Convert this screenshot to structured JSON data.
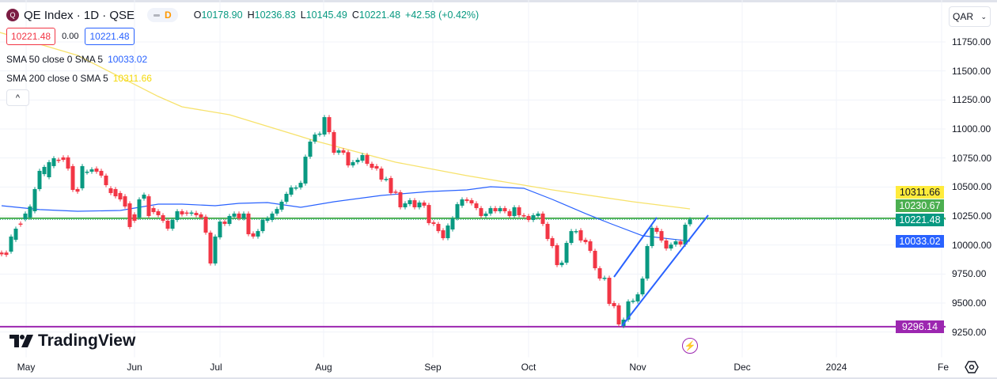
{
  "header": {
    "symbol": "QE Index · 1D · QSE",
    "logo_letter": "Q",
    "interval_badge": "D",
    "ohlc": [
      {
        "k": "O",
        "v": "10178.90"
      },
      {
        "k": "H",
        "v": "10236.83"
      },
      {
        "k": "L",
        "v": "10145.49"
      },
      {
        "k": "C",
        "v": "10221.48"
      }
    ],
    "change": "+42.58 (+0.42%)"
  },
  "quote": {
    "bid": "10221.48",
    "spread": "0.00",
    "ask": "10221.48"
  },
  "indicators": [
    {
      "label": "SMA 50 close 0 SMA 5",
      "value": "10033.02",
      "color": "#2962ff"
    },
    {
      "label": "SMA 200 close 0 SMA 5",
      "value": "10311.66",
      "color": "#f5d90a"
    }
  ],
  "collapse_label": "^",
  "currency": "QAR",
  "price_ticks": [
    "11750.00",
    "11500.00",
    "11250.00",
    "11000.00",
    "10750.00",
    "10500.00",
    "10250.00",
    "10000.00",
    "9750.00",
    "9500.00",
    "9250.00"
  ],
  "price_labels": [
    {
      "v": "10311.66",
      "bg": "#ffeb3b",
      "fg": "#131722"
    },
    {
      "v": "10230.67",
      "bg": "#4caf50",
      "fg": "#ffffff"
    },
    {
      "v": "10221.48",
      "bg": "#089981",
      "fg": "#ffffff"
    },
    {
      "v": "10033.02",
      "bg": "#2962ff",
      "fg": "#ffffff"
    },
    {
      "v": "9296.14",
      "bg": "#9c27b0",
      "fg": "#ffffff"
    }
  ],
  "time_labels": [
    "May",
    "Jun",
    "Jul",
    "Aug",
    "Sep",
    "Oct",
    "Nov",
    "Dec",
    "2024",
    "Fe"
  ],
  "brand": "TradingView",
  "colors": {
    "up": "#089981",
    "down": "#f23645",
    "sma50": "#2962ff",
    "sma200": "#f7e26b",
    "hline": "#4caf50",
    "support": "#9c27b0",
    "trend": "#2962ff"
  },
  "chart_data": {
    "type": "candlestick",
    "ylim": [
      9200,
      11900
    ],
    "hlines": {
      "resistance": 10230.67,
      "last": 10221.48,
      "support": 9296.14
    },
    "candles": [
      [
        9935,
        9920
      ],
      [
        9935,
        9915
      ],
      [
        9943,
        10073
      ],
      [
        10045,
        10141
      ],
      [
        10185,
        10175
      ],
      [
        10223,
        10271
      ],
      [
        10237,
        10332
      ],
      [
        10291,
        10482
      ],
      [
        10482,
        10639
      ],
      [
        10611,
        10673
      ],
      [
        10584,
        10714
      ],
      [
        10680,
        10748
      ],
      [
        10735,
        10725
      ],
      [
        10755,
        10734
      ],
      [
        10755,
        10659
      ],
      [
        10680,
        10475
      ],
      [
        10482,
        10460
      ],
      [
        10489,
        10680
      ],
      [
        10625,
        10632
      ],
      [
        10632,
        10652
      ],
      [
        10659,
        10632
      ],
      [
        10639,
        10598
      ],
      [
        10598,
        10516
      ],
      [
        10489,
        10448
      ],
      [
        10482,
        10420
      ],
      [
        10448,
        10393
      ],
      [
        10420,
        10332
      ],
      [
        10359,
        10155
      ],
      [
        10264,
        10209
      ],
      [
        10237,
        10393
      ],
      [
        10400,
        10434
      ],
      [
        10420,
        10250
      ],
      [
        10318,
        10284
      ],
      [
        10291,
        10257
      ],
      [
        10257,
        10209
      ],
      [
        10209,
        10141
      ],
      [
        10141,
        10216
      ],
      [
        10216,
        10291
      ],
      [
        10291,
        10264
      ],
      [
        10280,
        10270
      ],
      [
        10270,
        10280
      ],
      [
        10277,
        10257
      ],
      [
        10264,
        10237
      ],
      [
        10244,
        10107
      ],
      [
        10107,
        9841
      ],
      [
        9841,
        10073
      ],
      [
        10066,
        10202
      ],
      [
        10202,
        10182
      ],
      [
        10182,
        10250
      ],
      [
        10244,
        10271
      ],
      [
        10271,
        10230
      ],
      [
        10230,
        10271
      ],
      [
        10271,
        10093
      ],
      [
        10100,
        10073
      ],
      [
        10073,
        10120
      ],
      [
        10120,
        10216
      ],
      [
        10209,
        10230
      ],
      [
        10216,
        10271
      ],
      [
        10271,
        10311
      ],
      [
        10305,
        10373
      ],
      [
        10373,
        10441
      ],
      [
        10434,
        10496
      ],
      [
        10490,
        10496
      ],
      [
        10496,
        10536
      ],
      [
        10530,
        10761
      ],
      [
        10761,
        10891
      ],
      [
        10891,
        10952
      ],
      [
        10952,
        10960
      ],
      [
        10952,
        11102
      ],
      [
        11102,
        10973
      ],
      [
        10973,
        10795
      ],
      [
        10795,
        10816
      ],
      [
        10816,
        10795
      ],
      [
        10800,
        10686
      ],
      [
        10686,
        10714
      ],
      [
        10714,
        10734
      ],
      [
        10727,
        10775
      ],
      [
        10775,
        10700
      ],
      [
        10700,
        10666
      ],
      [
        10680,
        10659
      ],
      [
        10659,
        10564
      ],
      [
        10565,
        10570
      ],
      [
        10577,
        10448
      ],
      [
        10460,
        10455
      ],
      [
        10455,
        10325
      ],
      [
        10325,
        10359
      ],
      [
        10352,
        10386
      ],
      [
        10386,
        10325
      ],
      [
        10325,
        10366
      ],
      [
        10366,
        10339
      ],
      [
        10345,
        10189
      ],
      [
        10195,
        10182
      ],
      [
        10182,
        10120
      ],
      [
        10127,
        10059
      ],
      [
        10059,
        10168
      ],
      [
        10134,
        10230
      ],
      [
        10230,
        10352
      ],
      [
        10339,
        10393
      ],
      [
        10393,
        10380
      ],
      [
        10386,
        10359
      ],
      [
        10359,
        10318
      ],
      [
        10318,
        10250
      ],
      [
        10250,
        10271
      ],
      [
        10271,
        10318
      ],
      [
        10318,
        10291
      ],
      [
        10291,
        10318
      ],
      [
        10318,
        10291
      ],
      [
        10291,
        10250
      ],
      [
        10250,
        10325
      ],
      [
        10325,
        10257
      ],
      [
        10257,
        10250
      ],
      [
        10250,
        10216
      ],
      [
        10216,
        10257
      ],
      [
        10250,
        10271
      ],
      [
        10271,
        10182
      ],
      [
        10182,
        10052
      ],
      [
        10059,
        9991
      ],
      [
        9998,
        9827
      ],
      [
        9827,
        9848
      ],
      [
        9848,
        10018
      ],
      [
        10018,
        10120
      ],
      [
        10115,
        10120
      ],
      [
        10127,
        10039
      ],
      [
        10045,
        10025
      ],
      [
        10032,
        9950
      ],
      [
        9950,
        9800
      ],
      [
        9800,
        9711
      ],
      [
        9711,
        9718
      ],
      [
        9718,
        9493
      ],
      [
        9500,
        9473
      ],
      [
        9480,
        9316
      ],
      [
        9302,
        9357
      ],
      [
        9357,
        9514
      ],
      [
        9514,
        9520
      ],
      [
        9514,
        9575
      ],
      [
        9575,
        9711
      ],
      [
        9711,
        9991
      ],
      [
        9991,
        10148
      ],
      [
        10148,
        10114
      ],
      [
        10120,
        10039
      ],
      [
        10039,
        9970
      ],
      [
        9970,
        10004
      ],
      [
        10004,
        10032
      ],
      [
        10032,
        10004
      ],
      [
        10004,
        10175
      ],
      [
        10178.9,
        10221.48
      ]
    ],
    "sma50": [
      [
        0,
        10339
      ],
      [
        8,
        10305
      ],
      [
        16,
        10291
      ],
      [
        25,
        10298
      ],
      [
        28,
        10318
      ],
      [
        33,
        10352
      ],
      [
        38,
        10352
      ],
      [
        45,
        10339
      ],
      [
        50,
        10359
      ],
      [
        56,
        10366
      ],
      [
        63,
        10325
      ],
      [
        70,
        10373
      ],
      [
        80,
        10427
      ],
      [
        90,
        10461
      ],
      [
        98,
        10475
      ],
      [
        103,
        10502
      ],
      [
        110,
        10489
      ],
      [
        116,
        10393
      ],
      [
        123,
        10271
      ],
      [
        128,
        10189
      ],
      [
        135,
        10080
      ],
      [
        145,
        10033
      ]
    ],
    "sma200": [
      [
        -1,
        11839
      ],
      [
        16,
        11634
      ],
      [
        33,
        11280
      ],
      [
        38,
        11191
      ],
      [
        48,
        11123
      ],
      [
        66,
        10898
      ],
      [
        83,
        10714
      ],
      [
        98,
        10598
      ],
      [
        116,
        10475
      ],
      [
        133,
        10373
      ],
      [
        145,
        10311.66
      ]
    ]
  }
}
